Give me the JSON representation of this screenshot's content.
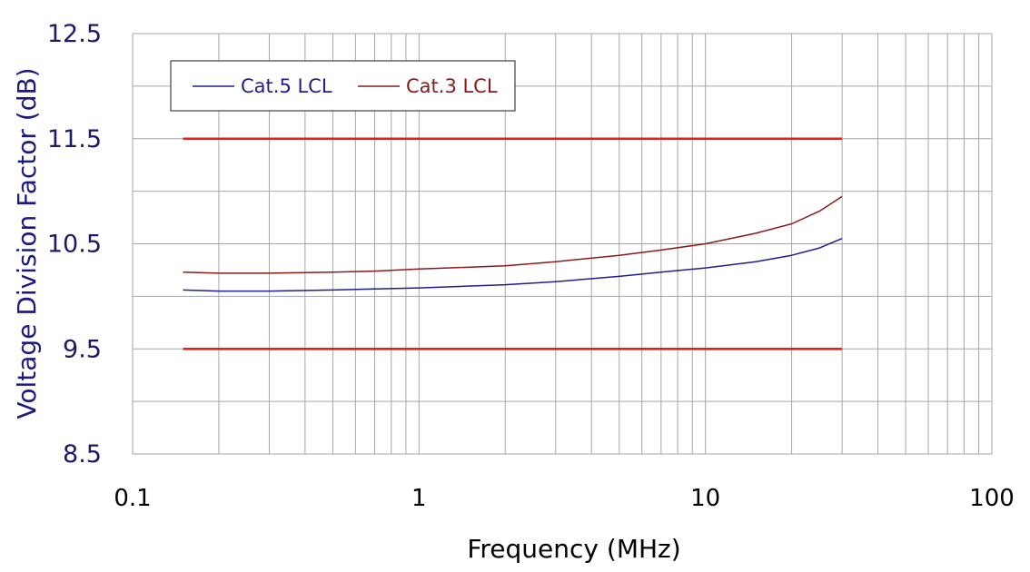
{
  "chart_data": {
    "type": "line",
    "title": "",
    "xlabel": "Frequency (MHz)",
    "ylabel": "Voltage Division Factor (dB)",
    "xscale": "log",
    "xlim": [
      0.1,
      100
    ],
    "ylim": [
      8.5,
      12.5
    ],
    "x_tick_labels": [
      "0.1",
      "1",
      "10",
      "100"
    ],
    "x_tick_values": [
      0.1,
      1,
      10,
      100
    ],
    "y_tick_labels": [
      "8.5",
      "9.5",
      "10.5",
      "11.5",
      "12.5"
    ],
    "y_tick_values": [
      8.5,
      9.5,
      10.5,
      11.5,
      12.5
    ],
    "y_minor_grid_values": [
      9.0,
      10.0,
      11.0,
      12.0
    ],
    "grid": true,
    "legend_position": "top-left",
    "series": [
      {
        "name": "Cat.5 LCL",
        "color": "#1f1f8c",
        "in_legend": true,
        "x": [
          0.15,
          0.2,
          0.3,
          0.5,
          0.7,
          1,
          2,
          3,
          5,
          7,
          10,
          15,
          20,
          25,
          30
        ],
        "y": [
          10.06,
          10.05,
          10.05,
          10.06,
          10.07,
          10.08,
          10.11,
          10.14,
          10.19,
          10.23,
          10.27,
          10.33,
          10.39,
          10.46,
          10.55
        ]
      },
      {
        "name": "Cat.3 LCL",
        "color": "#8b1a1a",
        "in_legend": true,
        "x": [
          0.15,
          0.2,
          0.3,
          0.5,
          0.7,
          1,
          2,
          3,
          5,
          7,
          10,
          15,
          20,
          25,
          30
        ],
        "y": [
          10.23,
          10.22,
          10.22,
          10.23,
          10.24,
          10.26,
          10.29,
          10.33,
          10.39,
          10.44,
          10.5,
          10.6,
          10.69,
          10.81,
          10.95
        ]
      },
      {
        "name": "",
        "color": "#e02020",
        "in_legend": false,
        "x": [
          0.15,
          30
        ],
        "y": [
          11.5,
          11.5
        ]
      },
      {
        "name": "",
        "color": "#e02020",
        "in_legend": false,
        "x": [
          0.15,
          30
        ],
        "y": [
          9.5,
          9.5
        ]
      }
    ],
    "colors": {
      "tick_label_y": "#1a1a66",
      "axis_title_y": "#1a1a80",
      "grid": "#a6a6a6"
    }
  }
}
